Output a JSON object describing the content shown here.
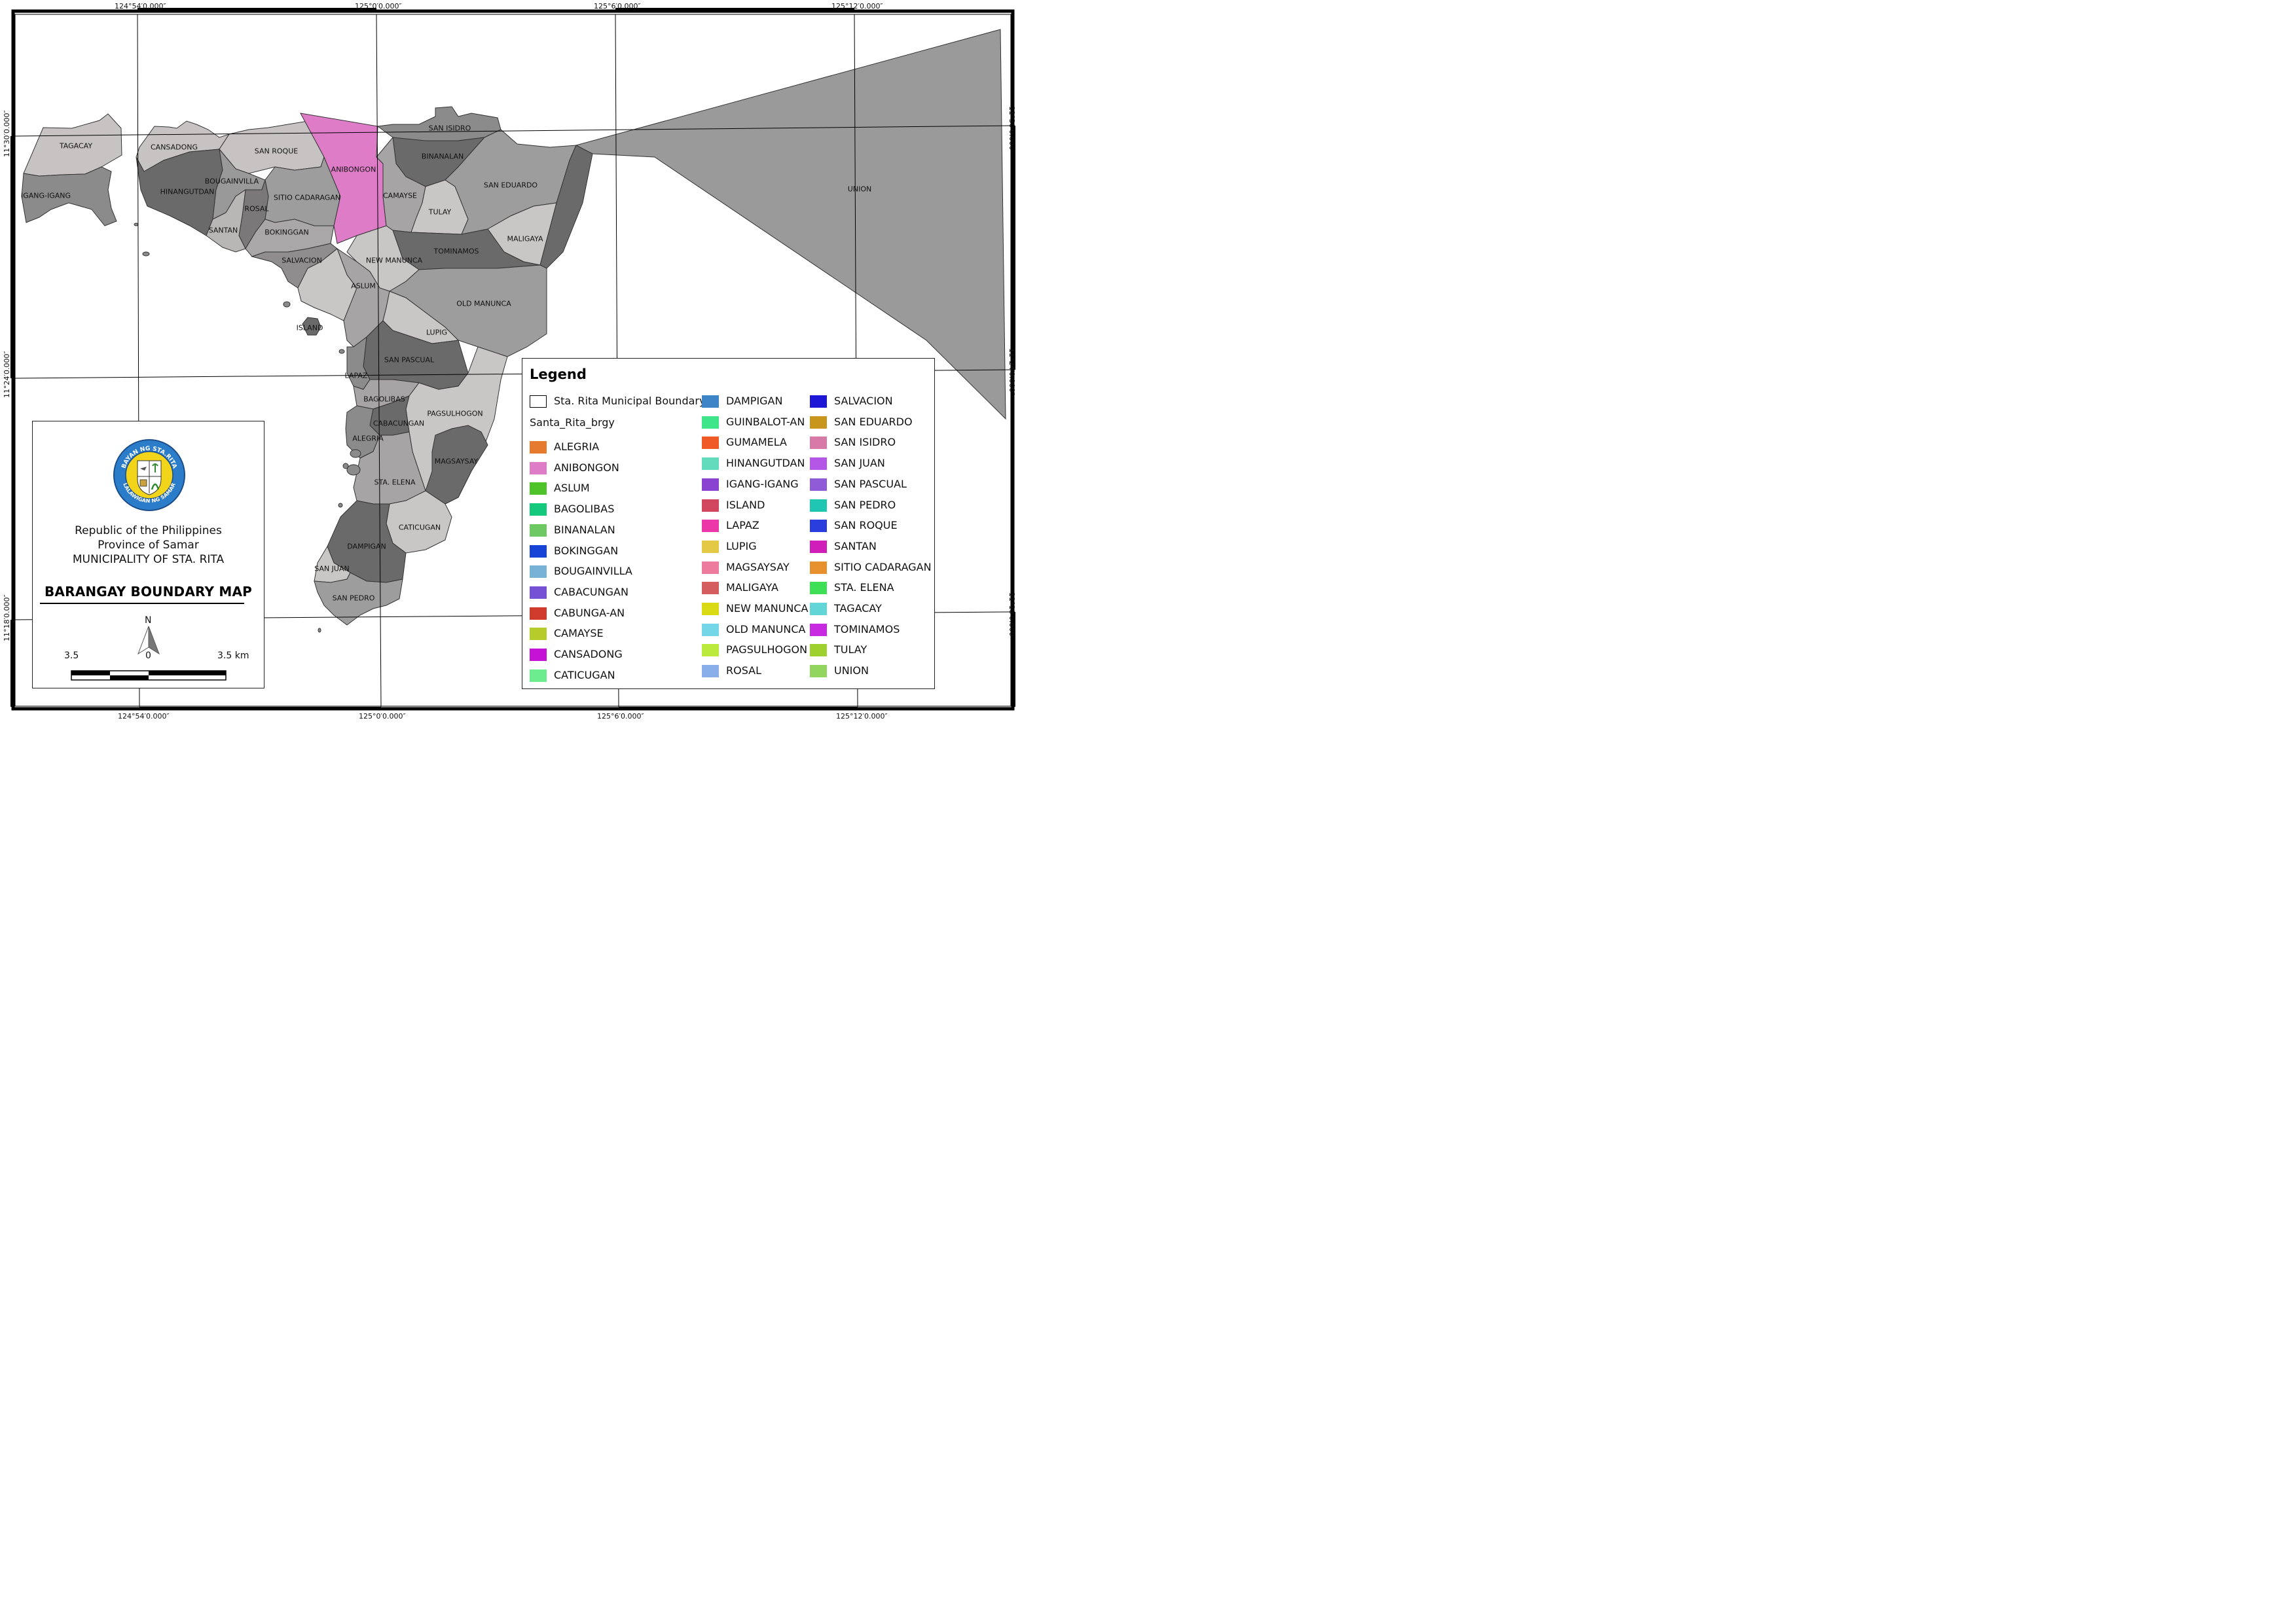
{
  "coords": {
    "top": [
      "124°54′0.000″",
      "125°0′0.000″",
      "125°6′0.000″",
      "125°12′0.000″"
    ],
    "bottom": [
      "124°54′0.000″",
      "125°0′0.000″",
      "125°6′0.000″",
      "125°12′0.000″"
    ],
    "left": [
      "11°30′0.000″",
      "11°24′0.000″",
      "11°18′0.000″"
    ],
    "right": [
      "11°30′0.000″",
      "11°24′0.000″",
      "11°18′0.000″"
    ]
  },
  "barangay_labels": {
    "tagacay": "TAGACAY",
    "igang": "IGANG-IGANG",
    "cansadong": "CANSADONG",
    "hinangutdan": "HINANGUTDAN",
    "bougainvilla": "BOUGAINVILLA",
    "san_roque": "SAN ROQUE",
    "anibongon": "ANIBONGON",
    "san_isidro": "SAN ISIDRO",
    "binanalan": "BINANALAN",
    "san_eduardo": "SAN EDUARDO",
    "union": "UNION",
    "sitio_cadaragan": "SITIO CADARAGAN",
    "rosal": "ROSAL",
    "santan": "SANTAN",
    "bokinggan": "BOKINGGAN",
    "camayse": "CAMAYSE",
    "tulay": "TULAY",
    "maligaya": "MALIGAYA",
    "tominamos": "TOMINAMOS",
    "new_manunca": "NEW MANUNCA",
    "salvacion": "SALVACION",
    "aslum": "ASLUM",
    "old_manunca": "OLD MANUNCA",
    "island": "ISLAND",
    "lupig": "LUPIG",
    "san_pascual": "SAN PASCUAL",
    "lapaz": "LAPAZ",
    "bagolibas": "BAGOLIBAS",
    "pagsulhogon": "PAGSULHOGON",
    "cabacungan": "CABACUNGAN",
    "alegria": "ALEGRIA",
    "magsaysay": "MAGSAYSAY",
    "sta_elena": "STA. ELENA",
    "caticugan": "CATICUGAN",
    "dampigan": "DAMPIGAN",
    "san_juan": "SAN JUAN",
    "san_pedro": "SAN PEDRO"
  },
  "highlight_color": "#de7cc8",
  "title_block": {
    "seal_top_text": "BAYAN NG STA.RITA",
    "seal_bottom_text": "LALAWIGAN NG SAMAR",
    "line1": "Republic of the Philippines",
    "line2": "Province of Samar",
    "line3": "MUNICIPALITY OF STA. RITA",
    "map_title": "BARANGAY BOUNDARY MAP",
    "north": "N",
    "scale_left": "3.5",
    "scale_mid": "0",
    "scale_right": "3.5 km"
  },
  "legend": {
    "title": "Legend",
    "boundary_label": "Sta. Rita Municipal Boundary",
    "layer_name": "Santa_Rita_brgy",
    "col1": [
      {
        "label": "ALEGRIA",
        "color": "#e67a2e"
      },
      {
        "label": "ANIBONGON",
        "color": "#de7cc8"
      },
      {
        "label": "ASLUM",
        "color": "#4fc42a"
      },
      {
        "label": "BAGOLIBAS",
        "color": "#14c97c"
      },
      {
        "label": "BINANALAN",
        "color": "#6ec965"
      },
      {
        "label": "BOKINGGAN",
        "color": "#1744d6"
      },
      {
        "label": "BOUGAINVILLA",
        "color": "#76b3d4"
      },
      {
        "label": "CABACUNGAN",
        "color": "#7551d6"
      },
      {
        "label": "CABUNGA-AN",
        "color": "#d13b2b"
      },
      {
        "label": "CAMAYSE",
        "color": "#b5cc2a"
      },
      {
        "label": "CANSADONG",
        "color": "#c413d4"
      },
      {
        "label": "CATICUGAN",
        "color": "#6ceb8f"
      }
    ],
    "col2": [
      {
        "label": "DAMPIGAN",
        "color": "#3d85c6"
      },
      {
        "label": "GUINBALOT-AN",
        "color": "#3fe589"
      },
      {
        "label": "GUMAMELA",
        "color": "#ef5a26"
      },
      {
        "label": "HINANGUTDAN",
        "color": "#62dcbd"
      },
      {
        "label": "IGANG-IGANG",
        "color": "#8a43d0"
      },
      {
        "label": "ISLAND",
        "color": "#d1455d"
      },
      {
        "label": "LAPAZ",
        "color": "#ec37a8"
      },
      {
        "label": "LUPIG",
        "color": "#e4c947"
      },
      {
        "label": "MAGSAYSAY",
        "color": "#ec7b9e"
      },
      {
        "label": "MALIGAYA",
        "color": "#d35d5f"
      },
      {
        "label": "NEW MANUNCA",
        "color": "#d9d914"
      },
      {
        "label": "OLD MANUNCA",
        "color": "#74d6e6"
      },
      {
        "label": "PAGSULHOGON",
        "color": "#bcea3c"
      },
      {
        "label": "ROSAL",
        "color": "#8aaee9"
      }
    ],
    "col3": [
      {
        "label": "SALVACION",
        "color": "#1f17d6"
      },
      {
        "label": "SAN EDUARDO",
        "color": "#c9961d"
      },
      {
        "label": "SAN ISIDRO",
        "color": "#d87aa8"
      },
      {
        "label": "SAN JUAN",
        "color": "#b457e6"
      },
      {
        "label": "SAN PASCUAL",
        "color": "#8f5bd6"
      },
      {
        "label": "SAN PEDRO",
        "color": "#1fc7b3"
      },
      {
        "label": "SAN ROQUE",
        "color": "#2a3ede"
      },
      {
        "label": "SANTAN",
        "color": "#d01fb8"
      },
      {
        "label": "SITIO CADARAGAN",
        "color": "#e6912e"
      },
      {
        "label": "STA. ELENA",
        "color": "#3ede56"
      },
      {
        "label": "TAGACAY",
        "color": "#62d6d6"
      },
      {
        "label": "TOMINAMOS",
        "color": "#c72ae0"
      },
      {
        "label": "TULAY",
        "color": "#9ed12f"
      },
      {
        "label": "UNION",
        "color": "#93d65f"
      }
    ]
  }
}
